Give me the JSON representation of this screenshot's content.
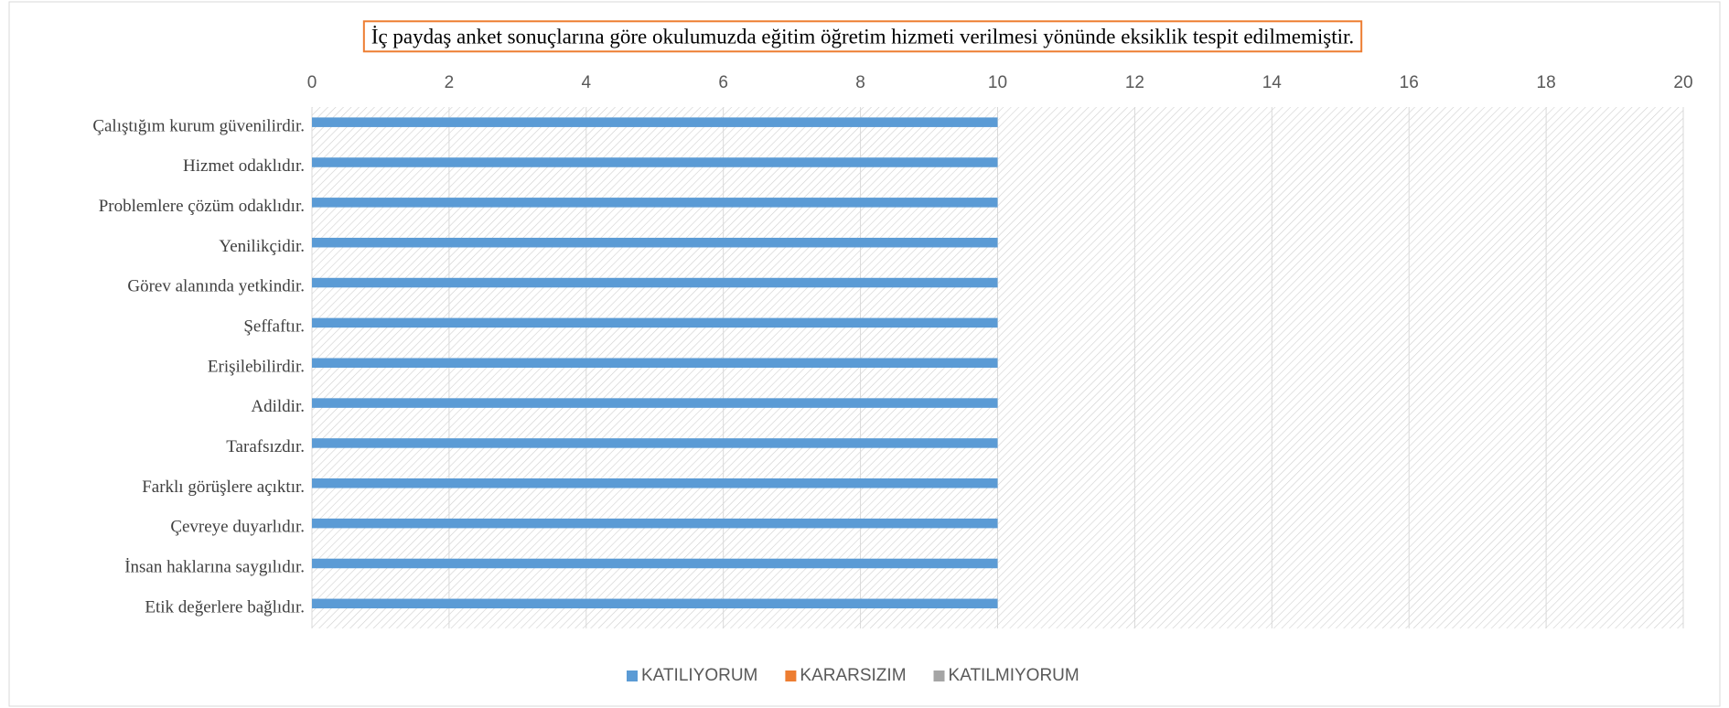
{
  "chart_data": {
    "type": "bar",
    "orientation": "horizontal",
    "title": "İç paydaş anket sonuçlarına göre okulumuzda eğitim öğretim hizmeti verilmesi yönünde eksiklik tespit edilmemiştir.",
    "categories": [
      "Çalıştığım kurum güvenilirdir.",
      "Hizmet odaklıdır.",
      "Problemlere çözüm odaklıdır.",
      "Yenilikçidir.",
      "Görev alanında yetkindir.",
      "Şeffaftır.",
      "Erişilebilirdir.",
      "Adildir.",
      "Tarafsızdır.",
      "Farklı görüşlere açıktır.",
      "Çevreye duyarlıdır.",
      "İnsan haklarına saygılıdır.",
      "Etik değerlere bağlıdır."
    ],
    "series": [
      {
        "name": "KATILIYORUM",
        "color": "#5b9bd5",
        "values": [
          10,
          10,
          10,
          10,
          10,
          10,
          10,
          10,
          10,
          10,
          10,
          10,
          10
        ]
      },
      {
        "name": "KARARSIZIM",
        "color": "#ed7d31",
        "values": [
          0,
          0,
          0,
          0,
          0,
          0,
          0,
          0,
          0,
          0,
          0,
          0,
          0
        ]
      },
      {
        "name": "KATILMIYORUM",
        "color": "#a5a5a5",
        "values": [
          0,
          0,
          0,
          0,
          0,
          0,
          0,
          0,
          0,
          0,
          0,
          0,
          0
        ]
      }
    ],
    "xlim": [
      0,
      20
    ],
    "xticks": [
      0,
      2,
      4,
      6,
      8,
      10,
      12,
      14,
      16,
      18,
      20
    ],
    "grid": true,
    "legend": "bottom"
  }
}
